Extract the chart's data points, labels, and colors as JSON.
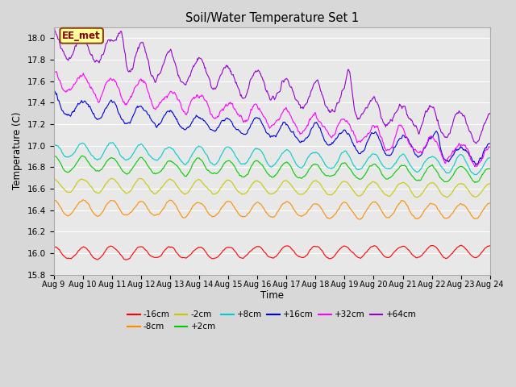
{
  "title": "Soil/Water Temperature Set 1",
  "xlabel": "Time",
  "ylabel": "Temperature (C)",
  "ylim": [
    15.8,
    18.1
  ],
  "x_tick_labels": [
    "Aug 9",
    "Aug 10",
    "Aug 11",
    "Aug 12",
    "Aug 13",
    "Aug 14",
    "Aug 15",
    "Aug 16",
    "Aug 17",
    "Aug 18",
    "Aug 19",
    "Aug 20",
    "Aug 21",
    "Aug 22",
    "Aug 23",
    "Aug 24"
  ],
  "annotation": "EE_met",
  "background_color": "#d8d8d8",
  "plot_bg_color": "#e8e8e8",
  "grid_color": "#ffffff",
  "series": [
    {
      "label": "-16cm",
      "color": "#ff0000",
      "base": 16.0,
      "amp": 0.055,
      "period": 1.0,
      "trend": 0.001,
      "noise_amp": 0.02,
      "spike_amp": 0.0
    },
    {
      "label": "-8cm",
      "color": "#ff8c00",
      "base": 16.42,
      "amp": 0.07,
      "period": 1.0,
      "trend": -0.002,
      "noise_amp": 0.025,
      "spike_amp": 0.0
    },
    {
      "label": "-2cm",
      "color": "#c8c800",
      "base": 16.63,
      "amp": 0.065,
      "period": 1.0,
      "trend": -0.003,
      "noise_amp": 0.02,
      "spike_amp": 0.0
    },
    {
      "label": "+2cm",
      "color": "#00cc00",
      "base": 16.83,
      "amp": 0.07,
      "period": 1.0,
      "trend": -0.007,
      "noise_amp": 0.03,
      "spike_amp": 0.0
    },
    {
      "label": "+8cm",
      "color": "#00cccc",
      "base": 16.96,
      "amp": 0.075,
      "period": 1.0,
      "trend": -0.01,
      "noise_amp": 0.03,
      "spike_amp": 0.0
    },
    {
      "label": "+16cm",
      "color": "#0000dd",
      "base": 17.38,
      "amp": 0.08,
      "period": 1.0,
      "trend": -0.032,
      "noise_amp": 0.06,
      "spike_amp": 0.15
    },
    {
      "label": "+32cm",
      "color": "#ff00ff",
      "base": 17.62,
      "amp": 0.1,
      "period": 1.0,
      "trend": -0.048,
      "noise_amp": 0.08,
      "spike_amp": 0.22
    },
    {
      "label": "+64cm",
      "color": "#9400d3",
      "base": 17.95,
      "amp": 0.12,
      "period": 1.0,
      "trend": -0.055,
      "noise_amp": 0.1,
      "spike_amp": 0.28
    }
  ]
}
